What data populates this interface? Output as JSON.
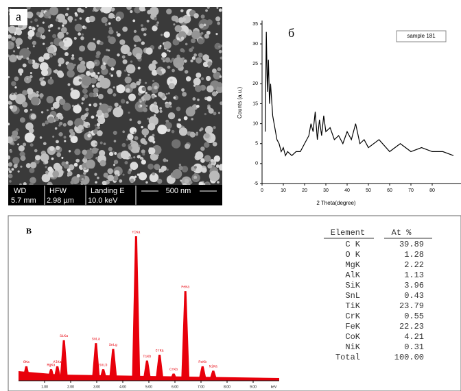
{
  "panel_a": {
    "label": "а",
    "scalebar": [
      [
        "WD",
        "5.7 mm"
      ],
      [
        "HFW",
        "2.98 µm"
      ],
      [
        "Landing E",
        "10.0 keV"
      ]
    ],
    "scale": "500 nm"
  },
  "chart_data": [
    {
      "type": "line",
      "panel_label": "б",
      "x_label": "2 Theta(degree)",
      "y_label": "Counts (a.u.)",
      "x": [
        1.5,
        2,
        2.5,
        3,
        3.5,
        4,
        5,
        6,
        7,
        8,
        9,
        10,
        11,
        12,
        14,
        16,
        18,
        20,
        22,
        23,
        24,
        25,
        26,
        27,
        28,
        29,
        30,
        32,
        34,
        36,
        38,
        40,
        42,
        44,
        46,
        48,
        50,
        55,
        60,
        65,
        70,
        75,
        80,
        85,
        90
      ],
      "series": [
        {
          "name": "sample 181",
          "color": "#000000",
          "values": [
            8,
            33,
            18,
            26,
            15,
            20,
            12,
            9,
            6,
            5,
            3,
            4,
            2,
            3,
            2,
            3,
            3,
            5,
            7,
            10,
            8,
            13,
            6,
            11,
            7,
            12,
            8,
            9,
            6,
            7,
            5,
            8,
            6,
            10,
            5,
            6,
            4,
            6,
            3,
            5,
            3,
            4,
            3,
            3,
            2
          ]
        }
      ],
      "xlim": [
        0,
        90
      ],
      "ylim": [
        -5,
        35
      ],
      "xticks": [
        0,
        10,
        20,
        30,
        40,
        50,
        60,
        70,
        80
      ],
      "yticks": [
        -5,
        0,
        5,
        10,
        15,
        20,
        25,
        30,
        35
      ]
    },
    {
      "type": "spectrum",
      "panel_label": "B",
      "x_label": "keV",
      "color": "#e8000b",
      "x": [
        0.3,
        1.25,
        1.49,
        1.74,
        2.97,
        3.25,
        3.63,
        4.51,
        4.93,
        5.41,
        5.95,
        6.4,
        7.06,
        7.47
      ],
      "values": [
        10,
        8,
        10,
        28,
        26,
        8,
        22,
        100,
        14,
        18,
        5,
        62,
        10,
        7
      ],
      "labels": [
        "OKa",
        "MgKa",
        "AlKa",
        "SiKa",
        "SnLa",
        "SnLb",
        "SnLg",
        "TiKa",
        "TiKb",
        "CrKa",
        "CrKb",
        "FeKa",
        "FeKb",
        "NiKa"
      ],
      "xlim": [
        0,
        10
      ],
      "ylim": [
        0,
        100
      ],
      "xticks": [
        {
          "value": 1,
          "label": "1.00"
        },
        {
          "value": 2,
          "label": "2.00"
        },
        {
          "value": 3,
          "label": "3.00"
        },
        {
          "value": 4,
          "label": "4.00"
        },
        {
          "value": 5,
          "label": "5.00"
        },
        {
          "value": 6,
          "label": "6.00"
        },
        {
          "value": 7,
          "label": "7.00"
        },
        {
          "value": 8,
          "label": "8.00"
        },
        {
          "value": 9,
          "label": "9.00"
        }
      ]
    }
  ],
  "table": {
    "headers": [
      "Element",
      "At %"
    ],
    "rows": [
      [
        "C K",
        "39.89"
      ],
      [
        "O K",
        "1.28"
      ],
      [
        "MgK",
        "2.22"
      ],
      [
        "AlK",
        "1.13"
      ],
      [
        "SiK",
        "3.96"
      ],
      [
        "SnL",
        "0.43"
      ],
      [
        "TiK",
        "23.79"
      ],
      [
        "CrK",
        "0.55"
      ],
      [
        "FeK",
        "22.23"
      ],
      [
        "CoK",
        "4.21"
      ],
      [
        "NiK",
        "0.31"
      ],
      [
        "Total",
        "100.00"
      ]
    ]
  }
}
